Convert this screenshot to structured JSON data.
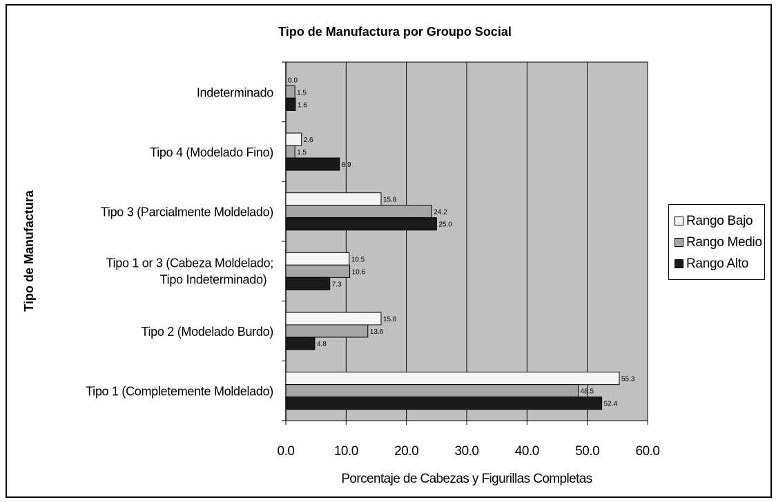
{
  "chart_data": {
    "type": "bar",
    "orientation": "horizontal",
    "title": "Tipo de Manufactura por Groupo Social",
    "xlabel": "Porcentaje de Cabezas y Figurillas Completas",
    "ylabel": "Tipo de Manufactura",
    "xlim": [
      0,
      60
    ],
    "x_ticks": [
      "0.0",
      "10.0",
      "20.0",
      "30.0",
      "40.0",
      "50.0",
      "60.0"
    ],
    "grid": true,
    "legend_position": "right",
    "categories": [
      "Indeterminado",
      "Tipo 4 (Modelado Fino)",
      "Tipo 3 (Parcialmente Moldelado)",
      "Tipo 1 or 3 (Cabeza Moldelado; Tipo Indeterminado)",
      "Tipo 2 (Modelado Burdo)",
      "Tipo 1 (Completemente Moldelado)"
    ],
    "series": [
      {
        "name": "Rango Bajo",
        "color": "#f4f4f4",
        "values": [
          0.0,
          2.6,
          15.8,
          10.5,
          15.8,
          55.3
        ],
        "labels": [
          "0.0",
          "2.6",
          "15.8",
          "10.5",
          "15.8",
          "55.3"
        ]
      },
      {
        "name": "Rango Medio",
        "color": "#a6a6a6",
        "values": [
          1.5,
          1.5,
          24.2,
          10.6,
          13.6,
          48.5
        ],
        "labels": [
          "1.5",
          "1.5",
          "24.2",
          "10.6",
          "13.6",
          "48.5"
        ]
      },
      {
        "name": "Rango Alto",
        "color": "#1a1a1a",
        "values": [
          1.6,
          8.9,
          25.0,
          7.3,
          4.8,
          52.4
        ],
        "labels": [
          "1.6",
          "8.9",
          "25.0",
          "7.3",
          "4.8",
          "52.4"
        ]
      }
    ],
    "plot_background": "#c0c0c0"
  }
}
